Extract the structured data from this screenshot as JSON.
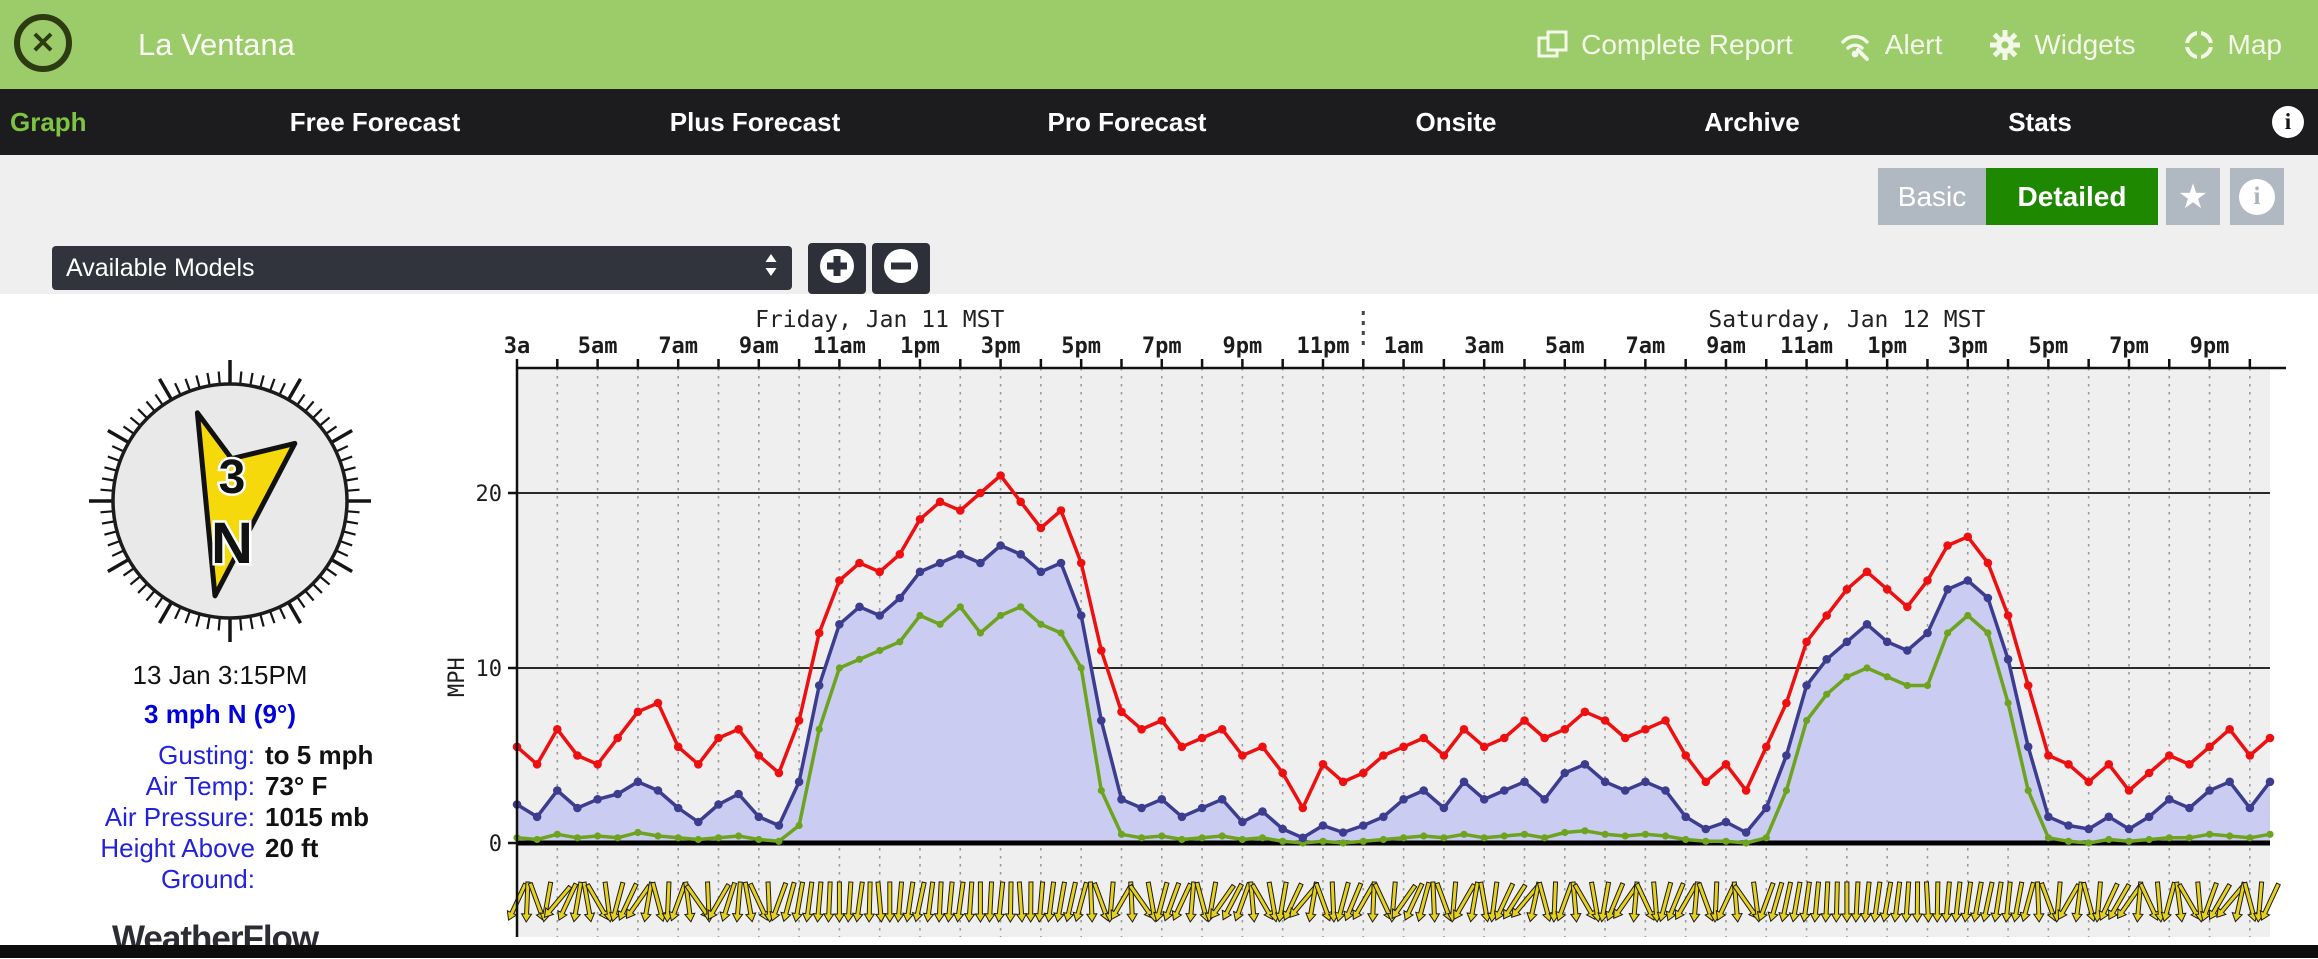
{
  "header": {
    "title": "La Ventana",
    "close_label": "✕",
    "actions": [
      {
        "label": "Complete Report",
        "icon": "report-icon"
      },
      {
        "label": "Alert",
        "icon": "alert-icon"
      },
      {
        "label": "Widgets",
        "icon": "gear-icon"
      },
      {
        "label": "Map",
        "icon": "map-icon"
      }
    ]
  },
  "nav": {
    "tabs": [
      {
        "label": "Graph",
        "active": true
      },
      {
        "label": "Free Forecast",
        "active": false
      },
      {
        "label": "Plus Forecast",
        "active": false
      },
      {
        "label": "Pro Forecast",
        "active": false
      },
      {
        "label": "Onsite",
        "active": false
      },
      {
        "label": "Archive",
        "active": false
      },
      {
        "label": "Stats",
        "active": false
      }
    ],
    "info_icon": "i"
  },
  "toolbar": {
    "basic_label": "Basic",
    "detailed_label": "Detailed",
    "star_icon": "★",
    "info_icon": "i",
    "active_view": "Detailed",
    "colors": {
      "inactive_bg": "#b0b9c2",
      "active_bg": "#1e8900"
    }
  },
  "models": {
    "selected": "Available Models"
  },
  "current_conditions": {
    "timestamp": "13 Jan 3:15PM",
    "wind_summary": "3 mph N (9°)",
    "compass": {
      "speed": "3",
      "direction": "N",
      "bearing_deg": 9
    },
    "rows": [
      {
        "label": "Gusting:",
        "value": "to 5 mph"
      },
      {
        "label": "Air Temp:",
        "value": "73° F"
      },
      {
        "label": "Air Pressure:",
        "value": "1015 mb"
      },
      {
        "label": "Height Above Ground:",
        "value": "20 ft"
      }
    ]
  },
  "branding": {
    "logo_text": "WeatherFlow"
  },
  "chart_data": {
    "type": "line",
    "title_days": [
      "Friday, Jan 11 MST",
      "Saturday, Jan 12 MST"
    ],
    "day_label_center_hours": [
      9,
      33
    ],
    "day_boundary_hour": 21,
    "ylabel": "MPH",
    "yticks": [
      0,
      10,
      20
    ],
    "ylim": [
      0,
      27.5
    ],
    "xlim": [
      0,
      43.5
    ],
    "x_start": 0,
    "x_step": 0.5,
    "x_unit": "hours from Fri 3am MST",
    "x_tick_hours": [
      0,
      2,
      4,
      6,
      8,
      10,
      12,
      14,
      16,
      18,
      20,
      22,
      24,
      26,
      28,
      30,
      32,
      34,
      36,
      38,
      40,
      42
    ],
    "x_tick_labels": [
      "3a",
      "5am",
      "7am",
      "9am",
      "11am",
      "1pm",
      "3pm",
      "5pm",
      "7pm",
      "9pm",
      "11pm",
      "1am",
      "3am",
      "5am",
      "7am",
      "9am",
      "11am",
      "1pm",
      "3pm",
      "5pm",
      "7pm",
      "9pm"
    ],
    "grid": {
      "h_lines_mph": [
        10,
        20
      ],
      "v_dotted_every_hours": 1
    },
    "series": [
      {
        "name": "lull",
        "color": "#6da31f",
        "values": [
          0.3,
          0.2,
          0.5,
          0.3,
          0.4,
          0.3,
          0.6,
          0.4,
          0.3,
          0.2,
          0.3,
          0.4,
          0.2,
          0.1,
          1,
          6.5,
          10,
          10.5,
          11,
          11.5,
          13,
          12.5,
          13.5,
          12,
          13,
          13.5,
          12.5,
          12,
          10,
          3,
          0.5,
          0.3,
          0.4,
          0.2,
          0.3,
          0.4,
          0.2,
          0.3,
          0.1,
          0,
          0.1,
          0,
          0.1,
          0.2,
          0.3,
          0.4,
          0.3,
          0.5,
          0.3,
          0.4,
          0.5,
          0.3,
          0.6,
          0.7,
          0.5,
          0.4,
          0.5,
          0.4,
          0.2,
          0.1,
          0.1,
          0,
          0.3,
          3,
          7,
          8.5,
          9.5,
          10,
          9.5,
          9,
          9,
          12,
          13,
          12,
          8,
          3,
          0.3,
          0.1,
          0,
          0.2,
          0.1,
          0.2,
          0.3,
          0.3,
          0.5,
          0.4,
          0.3,
          0.5
        ]
      },
      {
        "name": "avg",
        "color": "#3d3d90",
        "fill": "#cacdf1",
        "values": [
          2.2,
          1.5,
          3,
          2,
          2.5,
          2.8,
          3.5,
          3,
          2,
          1.2,
          2.2,
          2.8,
          1.5,
          1,
          3.5,
          9,
          12.5,
          13.5,
          13,
          14,
          15.5,
          16,
          16.5,
          16,
          17,
          16.5,
          15.5,
          16,
          13,
          7,
          2.5,
          2,
          2.5,
          1.5,
          2,
          2.5,
          1.2,
          1.8,
          0.8,
          0.3,
          1,
          0.6,
          1,
          1.5,
          2.5,
          3,
          2,
          3.5,
          2.5,
          3,
          3.5,
          2.5,
          4,
          4.5,
          3.5,
          3,
          3.5,
          3,
          1.5,
          0.8,
          1.2,
          0.6,
          2,
          5,
          9,
          10.5,
          11.5,
          12.5,
          11.5,
          11,
          12,
          14.5,
          15,
          14,
          10.5,
          5.5,
          1.5,
          1,
          0.8,
          1.5,
          0.8,
          1.5,
          2.5,
          2,
          3,
          3.5,
          2,
          3.5
        ]
      },
      {
        "name": "gust",
        "color": "#ee1010",
        "values": [
          5.5,
          4.5,
          6.5,
          5,
          4.5,
          6,
          7.5,
          8,
          5.5,
          4.5,
          6,
          6.5,
          5,
          4,
          7,
          12,
          15,
          16,
          15.5,
          16.5,
          18.5,
          19.5,
          19,
          20,
          21,
          19.5,
          18,
          19,
          16,
          11,
          7.5,
          6.5,
          7,
          5.5,
          6,
          6.5,
          5,
          5.5,
          4,
          2,
          4.5,
          3.5,
          4,
          5,
          5.5,
          6,
          5,
          6.5,
          5.5,
          6,
          7,
          6,
          6.5,
          7.5,
          7,
          6,
          6.5,
          7,
          5,
          3.5,
          4.5,
          3,
          5.5,
          8,
          11.5,
          13,
          14.5,
          15.5,
          14.5,
          13.5,
          15,
          17,
          17.5,
          16,
          13,
          9,
          5,
          4.5,
          3.5,
          4.5,
          3,
          4,
          5,
          4.5,
          5.5,
          6.5,
          5,
          6
        ]
      }
    ],
    "direction_band": {
      "color": "#e6d11f",
      "directions_deg": [
        25,
        -20,
        40,
        10,
        -30,
        15,
        35,
        -15,
        20,
        -35,
        30,
        5,
        -25,
        20,
        10,
        5,
        0,
        8,
        -5,
        5,
        12,
        3,
        8,
        0,
        6,
        -4,
        5,
        10,
        15,
        -20,
        30,
        -35,
        15,
        25,
        -15,
        35,
        20,
        -30,
        10,
        40,
        -20,
        15,
        30,
        -25,
        35,
        15,
        -20,
        30,
        -10,
        25,
        40,
        -15,
        20,
        -30,
        10,
        35,
        -25,
        15,
        30,
        -20,
        25,
        -35,
        20,
        12,
        8,
        3,
        0,
        6,
        10,
        4,
        -3,
        5,
        8,
        12,
        6,
        15,
        -20,
        30,
        -15,
        25,
        35,
        -25,
        15,
        -30,
        20,
        40,
        -15,
        25
      ]
    }
  }
}
